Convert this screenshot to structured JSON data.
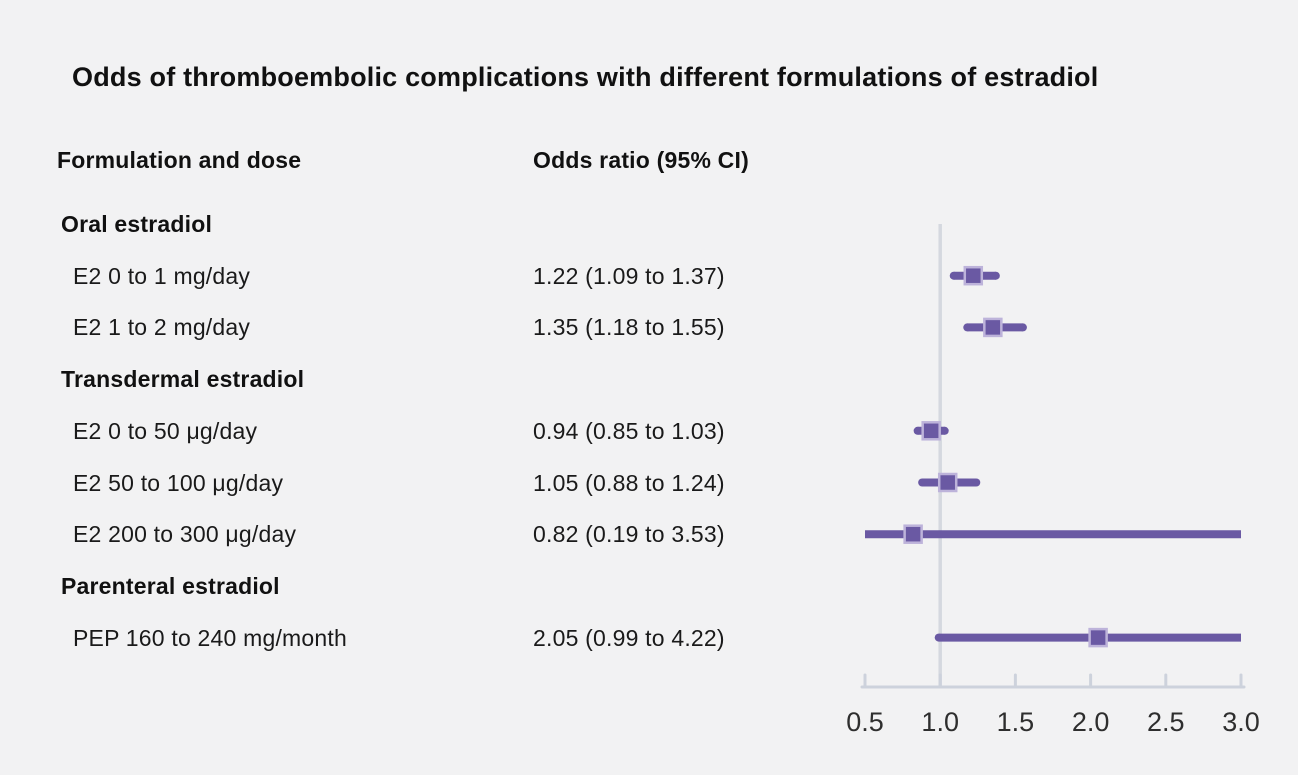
{
  "chart_data": {
    "type": "forest",
    "title": "Odds of thromboembolic complications with different formulations of estradiol",
    "columns": [
      "Formulation and dose",
      "Odds ratio (95% CI)"
    ],
    "xlim": [
      0.5,
      3.0
    ],
    "x_ticks": [
      "0.5",
      "1.0",
      "1.5",
      "2.0",
      "2.5",
      "3.0"
    ],
    "reference_line": 1.0,
    "rows": [
      {
        "kind": "section",
        "label": "Oral estradiol"
      },
      {
        "kind": "item",
        "label": "E2 0 to 1 mg/day",
        "value_text": "1.22 (1.09 to 1.37)",
        "est": 1.22,
        "lo": 1.09,
        "hi": 1.37
      },
      {
        "kind": "item",
        "label": "E2 1 to 2 mg/day",
        "value_text": "1.35 (1.18 to 1.55)",
        "est": 1.35,
        "lo": 1.18,
        "hi": 1.55
      },
      {
        "kind": "section",
        "label": "Transdermal estradiol"
      },
      {
        "kind": "item",
        "label": "E2 0 to 50 μg/day",
        "value_text": "0.94 (0.85 to 1.03)",
        "est": 0.94,
        "lo": 0.85,
        "hi": 1.03
      },
      {
        "kind": "item",
        "label": "E2 50 to 100 μg/day",
        "value_text": "1.05 (0.88 to 1.24)",
        "est": 1.05,
        "lo": 0.88,
        "hi": 1.24
      },
      {
        "kind": "item",
        "label": "E2 200 to 300 μg/day",
        "value_text": "0.82 (0.19 to 3.53)",
        "est": 0.82,
        "lo": 0.19,
        "hi": 3.53
      },
      {
        "kind": "section",
        "label": "Parenteral estradiol"
      },
      {
        "kind": "item",
        "label": "PEP 160 to 240 mg/month",
        "value_text": "2.05 (0.99 to 4.22)",
        "est": 2.05,
        "lo": 0.99,
        "hi": 4.22
      }
    ],
    "colors": {
      "ci_line": "#6a59a3",
      "marker_fill": "#6a59a3",
      "marker_edge": "#bdb3da",
      "axis": "#cdd2dc",
      "reference": "#d5d8df",
      "tick_text": "#2e2e2e",
      "background": "#f2f2f3",
      "text": "#1a1a1a"
    }
  }
}
